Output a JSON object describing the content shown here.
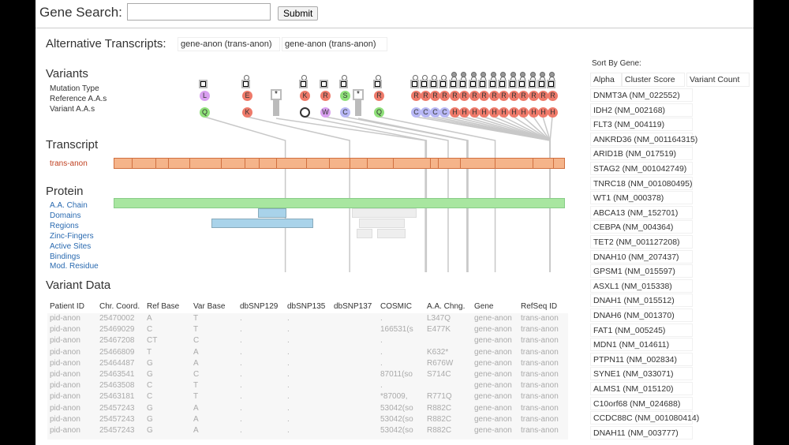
{
  "search": {
    "label": "Gene Search:",
    "value": "",
    "submit": "Submit"
  },
  "alt": {
    "label": "Alternative Transcripts:",
    "options": [
      "gene-anon (trans-anon)",
      "gene-anon (trans-anon)"
    ]
  },
  "variants": {
    "title": "Variants",
    "row_labels": [
      "Mutation Type",
      "Reference A.A.s",
      "Variant A.A.s"
    ],
    "items": [
      {
        "ref": "L",
        "var": "Q",
        "pos": 347,
        "refc": "#d9a0f0",
        "varc": "#8fe07a"
      },
      {
        "ref": "E",
        "var": "K",
        "pos": 477,
        "refc": "#ee7a6a",
        "varc": "#ee7a6a"
      },
      {
        "ref": "*",
        "var": "",
        "pos": 630,
        "type": "star"
      },
      {
        "ref": "K",
        "var": "*",
        "pos": 632,
        "refc": "#ee7a6a",
        "varc": "stop"
      },
      {
        "ref": "R",
        "var": "W",
        "pos": 676,
        "refc": "#ee7a6a",
        "varc": "#d9a0f0"
      },
      {
        "ref": "S",
        "var": "C",
        "pos": 714,
        "refc": "#8fe07a",
        "varc": "#b8b8f5"
      },
      {
        "ref": "*",
        "var": "",
        "pos": 716,
        "type": "star"
      },
      {
        "ref": "R",
        "var": "Q",
        "pos": 771,
        "refc": "#ee7a6a",
        "varc": "#8fe07a"
      },
      {
        "ref": "R",
        "var": "C",
        "pos": 882,
        "refc": "#ee7a6a",
        "varc": "#b8b8f5"
      },
      {
        "ref": "R",
        "var": "C",
        "pos": 882,
        "refc": "#ee7a6a",
        "varc": "#b8b8f5"
      },
      {
        "ref": "R",
        "var": "C",
        "pos": 882,
        "refc": "#ee7a6a",
        "varc": "#b8b8f5"
      },
      {
        "ref": "R",
        "var": "C",
        "pos": 882,
        "refc": "#ee7a6a",
        "varc": "#b8b8f5"
      },
      {
        "ref": "R",
        "var": "H",
        "pos": 882,
        "refc": "#ee7a6a",
        "varc": "#ee7a6a"
      },
      {
        "ref": "R",
        "var": "H",
        "pos": 882,
        "refc": "#ee7a6a",
        "varc": "#ee7a6a"
      },
      {
        "ref": "R",
        "var": "H",
        "pos": 882,
        "refc": "#ee7a6a",
        "varc": "#ee7a6a"
      },
      {
        "ref": "R",
        "var": "H",
        "pos": 882,
        "refc": "#ee7a6a",
        "varc": "#ee7a6a"
      },
      {
        "ref": "R",
        "var": "H",
        "pos": 882,
        "refc": "#ee7a6a",
        "varc": "#ee7a6a"
      },
      {
        "ref": "R",
        "var": "H",
        "pos": 882,
        "refc": "#ee7a6a",
        "varc": "#ee7a6a"
      },
      {
        "ref": "R",
        "var": "H",
        "pos": 882,
        "refc": "#ee7a6a",
        "varc": "#ee7a6a"
      },
      {
        "ref": "R",
        "var": "H",
        "pos": 882,
        "refc": "#ee7a6a",
        "varc": "#ee7a6a"
      },
      {
        "ref": "R",
        "var": "H",
        "pos": 882,
        "refc": "#ee7a6a",
        "varc": "#ee7a6a"
      },
      {
        "ref": "R",
        "var": "H",
        "pos": 882,
        "refc": "#ee7a6a",
        "varc": "#ee7a6a"
      },
      {
        "ref": "R",
        "var": "H",
        "pos": 882,
        "refc": "#ee7a6a",
        "varc": "#ee7a6a"
      }
    ]
  },
  "transcript": {
    "title": "Transcript",
    "name": "trans-anon",
    "color": "#f5b48a"
  },
  "protein": {
    "title": "Protein",
    "tracks": [
      "A.A. Chain",
      "Domains",
      "Regions",
      "Zinc-Fingers",
      "Active Sites",
      "Bindings",
      "Mod. Residue"
    ],
    "chain_color": "#a8e6a0",
    "domain_color": "#a9d3ea"
  },
  "variant_data": {
    "title": "Variant Data",
    "columns": [
      "Patient ID",
      "Chr. Coord.",
      "Ref Base",
      "Var Base",
      "dbSNP129",
      "dbSNP135",
      "dbSNP137",
      "COSMIC",
      "A.A. Chng.",
      "Gene",
      "RefSeq ID"
    ],
    "rows": [
      [
        "pid-anon",
        "25470002",
        "A",
        "T",
        ".",
        ".",
        "",
        ".",
        "L347Q",
        "gene-anon",
        "trans-anon"
      ],
      [
        "pid-anon",
        "25469029",
        "C",
        "T",
        ".",
        ".",
        "",
        "166531(s",
        "E477K",
        "gene-anon",
        "trans-anon"
      ],
      [
        "pid-anon",
        "25467208",
        "CT",
        "C",
        ".",
        ".",
        "",
        ".",
        "",
        "gene-anon",
        "trans-anon"
      ],
      [
        "pid-anon",
        "25466809",
        "T",
        "A",
        ".",
        ".",
        "",
        ".",
        "K632*",
        "gene-anon",
        "trans-anon"
      ],
      [
        "pid-anon",
        "25464487",
        "G",
        "A",
        ".",
        ".",
        "",
        ".",
        "R676W",
        "gene-anon",
        "trans-anon"
      ],
      [
        "pid-anon",
        "25463541",
        "G",
        "C",
        ".",
        ".",
        "",
        "87011(so",
        "S714C",
        "gene-anon",
        "trans-anon"
      ],
      [
        "pid-anon",
        "25463508",
        "C",
        "T",
        ".",
        ".",
        "",
        ".",
        "",
        "gene-anon",
        "trans-anon"
      ],
      [
        "pid-anon",
        "25463181",
        "C",
        "T",
        ".",
        ".",
        "",
        "*87009,",
        "R771Q",
        "gene-anon",
        "trans-anon"
      ],
      [
        "pid-anon",
        "25457243",
        "G",
        "A",
        ".",
        ".",
        "",
        "53042(so",
        "R882C",
        "gene-anon",
        "trans-anon"
      ],
      [
        "pid-anon",
        "25457243",
        "G",
        "A",
        ".",
        ".",
        "",
        "53042(so",
        "R882C",
        "gene-anon",
        "trans-anon"
      ],
      [
        "pid-anon",
        "25457243",
        "G",
        "A",
        ".",
        ".",
        "",
        "53042(so",
        "R882C",
        "gene-anon",
        "trans-anon"
      ]
    ]
  },
  "sort": {
    "label": "Sort By Gene:",
    "buttons": [
      "Alpha",
      "Cluster Score",
      "Variant Count"
    ]
  },
  "genes": [
    "DNMT3A (NM_022552)",
    "IDH2 (NM_002168)",
    "FLT3 (NM_004119)",
    "ANKRD36 (NM_001164315)",
    "ARID1B (NM_017519)",
    "STAG2 (NM_001042749)",
    "TNRC18 (NM_001080495)",
    "WT1 (NM_000378)",
    "ABCA13 (NM_152701)",
    "CEBPA (NM_004364)",
    "TET2 (NM_001127208)",
    "DNAH10 (NM_207437)",
    "GPSM1 (NM_015597)",
    "ASXL1 (NM_015338)",
    "DNAH1 (NM_015512)",
    "DNAH6 (NM_001370)",
    "FAT1 (NM_005245)",
    "MDN1 (NM_014611)",
    "PTPN11 (NM_002834)",
    "SYNE1 (NM_033071)",
    "ALMS1 (NM_015120)",
    "C10orf68 (NM_024688)",
    "CCDC88C (NM_001080414)",
    "DNAH11 (NM_003777)"
  ]
}
